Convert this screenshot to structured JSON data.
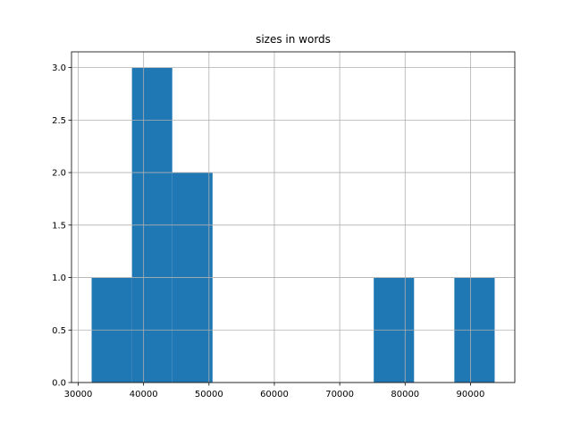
{
  "chart_data": {
    "type": "histogram",
    "title": "sizes in words",
    "bins": [
      32055,
      38219,
      44383,
      50547,
      56711,
      62875,
      69039,
      75203,
      81367,
      87531,
      93695
    ],
    "counts": [
      1,
      3,
      2,
      0,
      0,
      0,
      0,
      1,
      0,
      1
    ],
    "color": "#1f77b4",
    "xlim": [
      28973,
      96777
    ],
    "xticks": [
      30000,
      40000,
      50000,
      60000,
      70000,
      80000,
      90000
    ],
    "ylim": [
      0,
      3.15
    ],
    "yticks": [
      {
        "value": 0,
        "label": "0.0"
      },
      0.5,
      {
        "value": 1,
        "label": "1.0"
      },
      1.5,
      {
        "value": 2,
        "label": "2.0"
      },
      2.5,
      {
        "value": 3,
        "label": "3.0"
      }
    ],
    "grid": true
  }
}
